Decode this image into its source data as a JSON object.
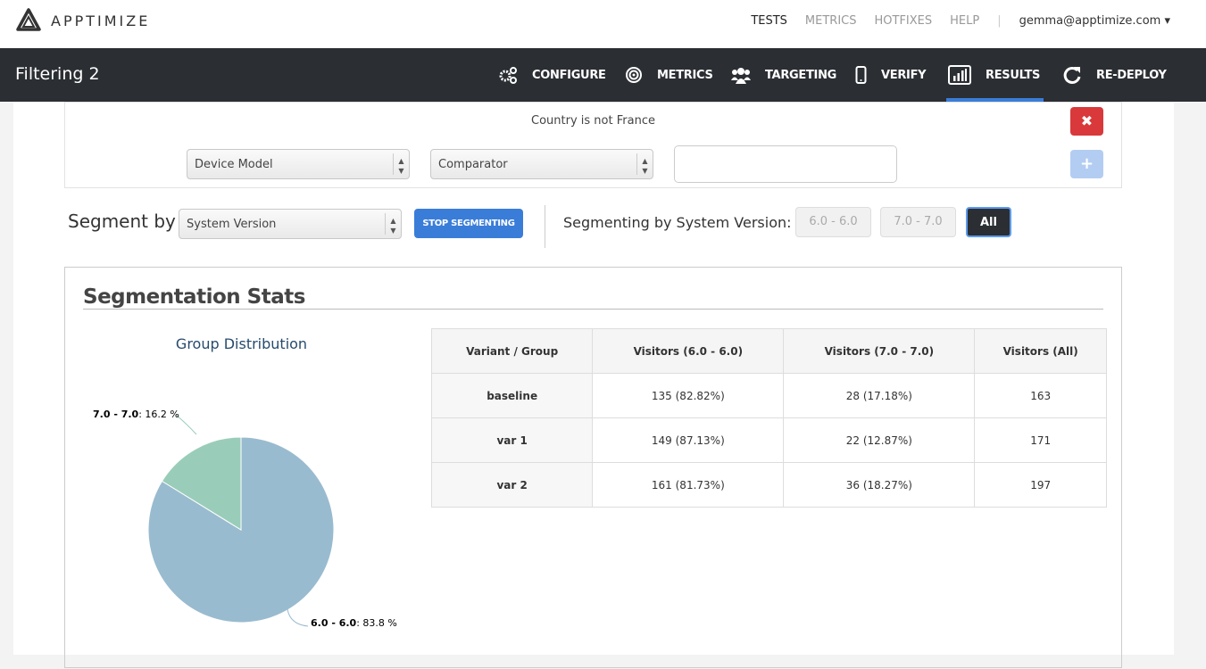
{
  "brand": "APPTIMIZE",
  "topnav": {
    "items": [
      "TESTS",
      "METRICS",
      "HOTFIXES",
      "HELP"
    ],
    "user": "gemma@apptimize.com"
  },
  "header": {
    "title": "Filtering 2",
    "tabs": [
      {
        "label": "CONFIGURE",
        "icon": "gears-icon"
      },
      {
        "label": "METRICS",
        "icon": "target-icon"
      },
      {
        "label": "TARGETING",
        "icon": "users-icon"
      },
      {
        "label": "VERIFY",
        "icon": "phone-icon"
      },
      {
        "label": "RESULTS",
        "icon": "bar-chart-icon",
        "active": true
      },
      {
        "label": "RE-DEPLOY",
        "icon": "refresh-icon"
      }
    ]
  },
  "filters": {
    "existing": "Country is not France",
    "remove": "✖",
    "new": {
      "attribute": "Device Model",
      "comparator": "Comparator",
      "value": "",
      "add": "+"
    }
  },
  "segment": {
    "label": "Segment by",
    "selected": "System Version",
    "stop": "STOP SEGMENTING",
    "by_label": "Segmenting by System Version:",
    "options": [
      "6.0 - 6.0",
      "7.0 - 7.0",
      "All"
    ],
    "active": "All"
  },
  "stats": {
    "title": "Segmentation Stats",
    "columns": [
      "Variant / Group",
      "Visitors (6.0 - 6.0)",
      "Visitors (7.0 - 7.0)",
      "Visitors (All)"
    ],
    "rows": [
      [
        "baseline",
        "135 (82.82%)",
        "28 (17.18%)",
        "163"
      ],
      [
        "var 1",
        "149 (87.13%)",
        "22 (12.87%)",
        "171"
      ],
      [
        "var 2",
        "161 (81.73%)",
        "36 (18.27%)",
        "197"
      ]
    ]
  },
  "chart_data": {
    "type": "pie",
    "title": "Group Distribution",
    "slices": [
      {
        "label": "6.0 - 6.0",
        "value": 83.8,
        "value_text": "83.8 %",
        "color": "#99bbcf"
      },
      {
        "label": "7.0 - 7.0",
        "value": 16.2,
        "value_text": "16.2 %",
        "color": "#9acdb9"
      }
    ]
  }
}
